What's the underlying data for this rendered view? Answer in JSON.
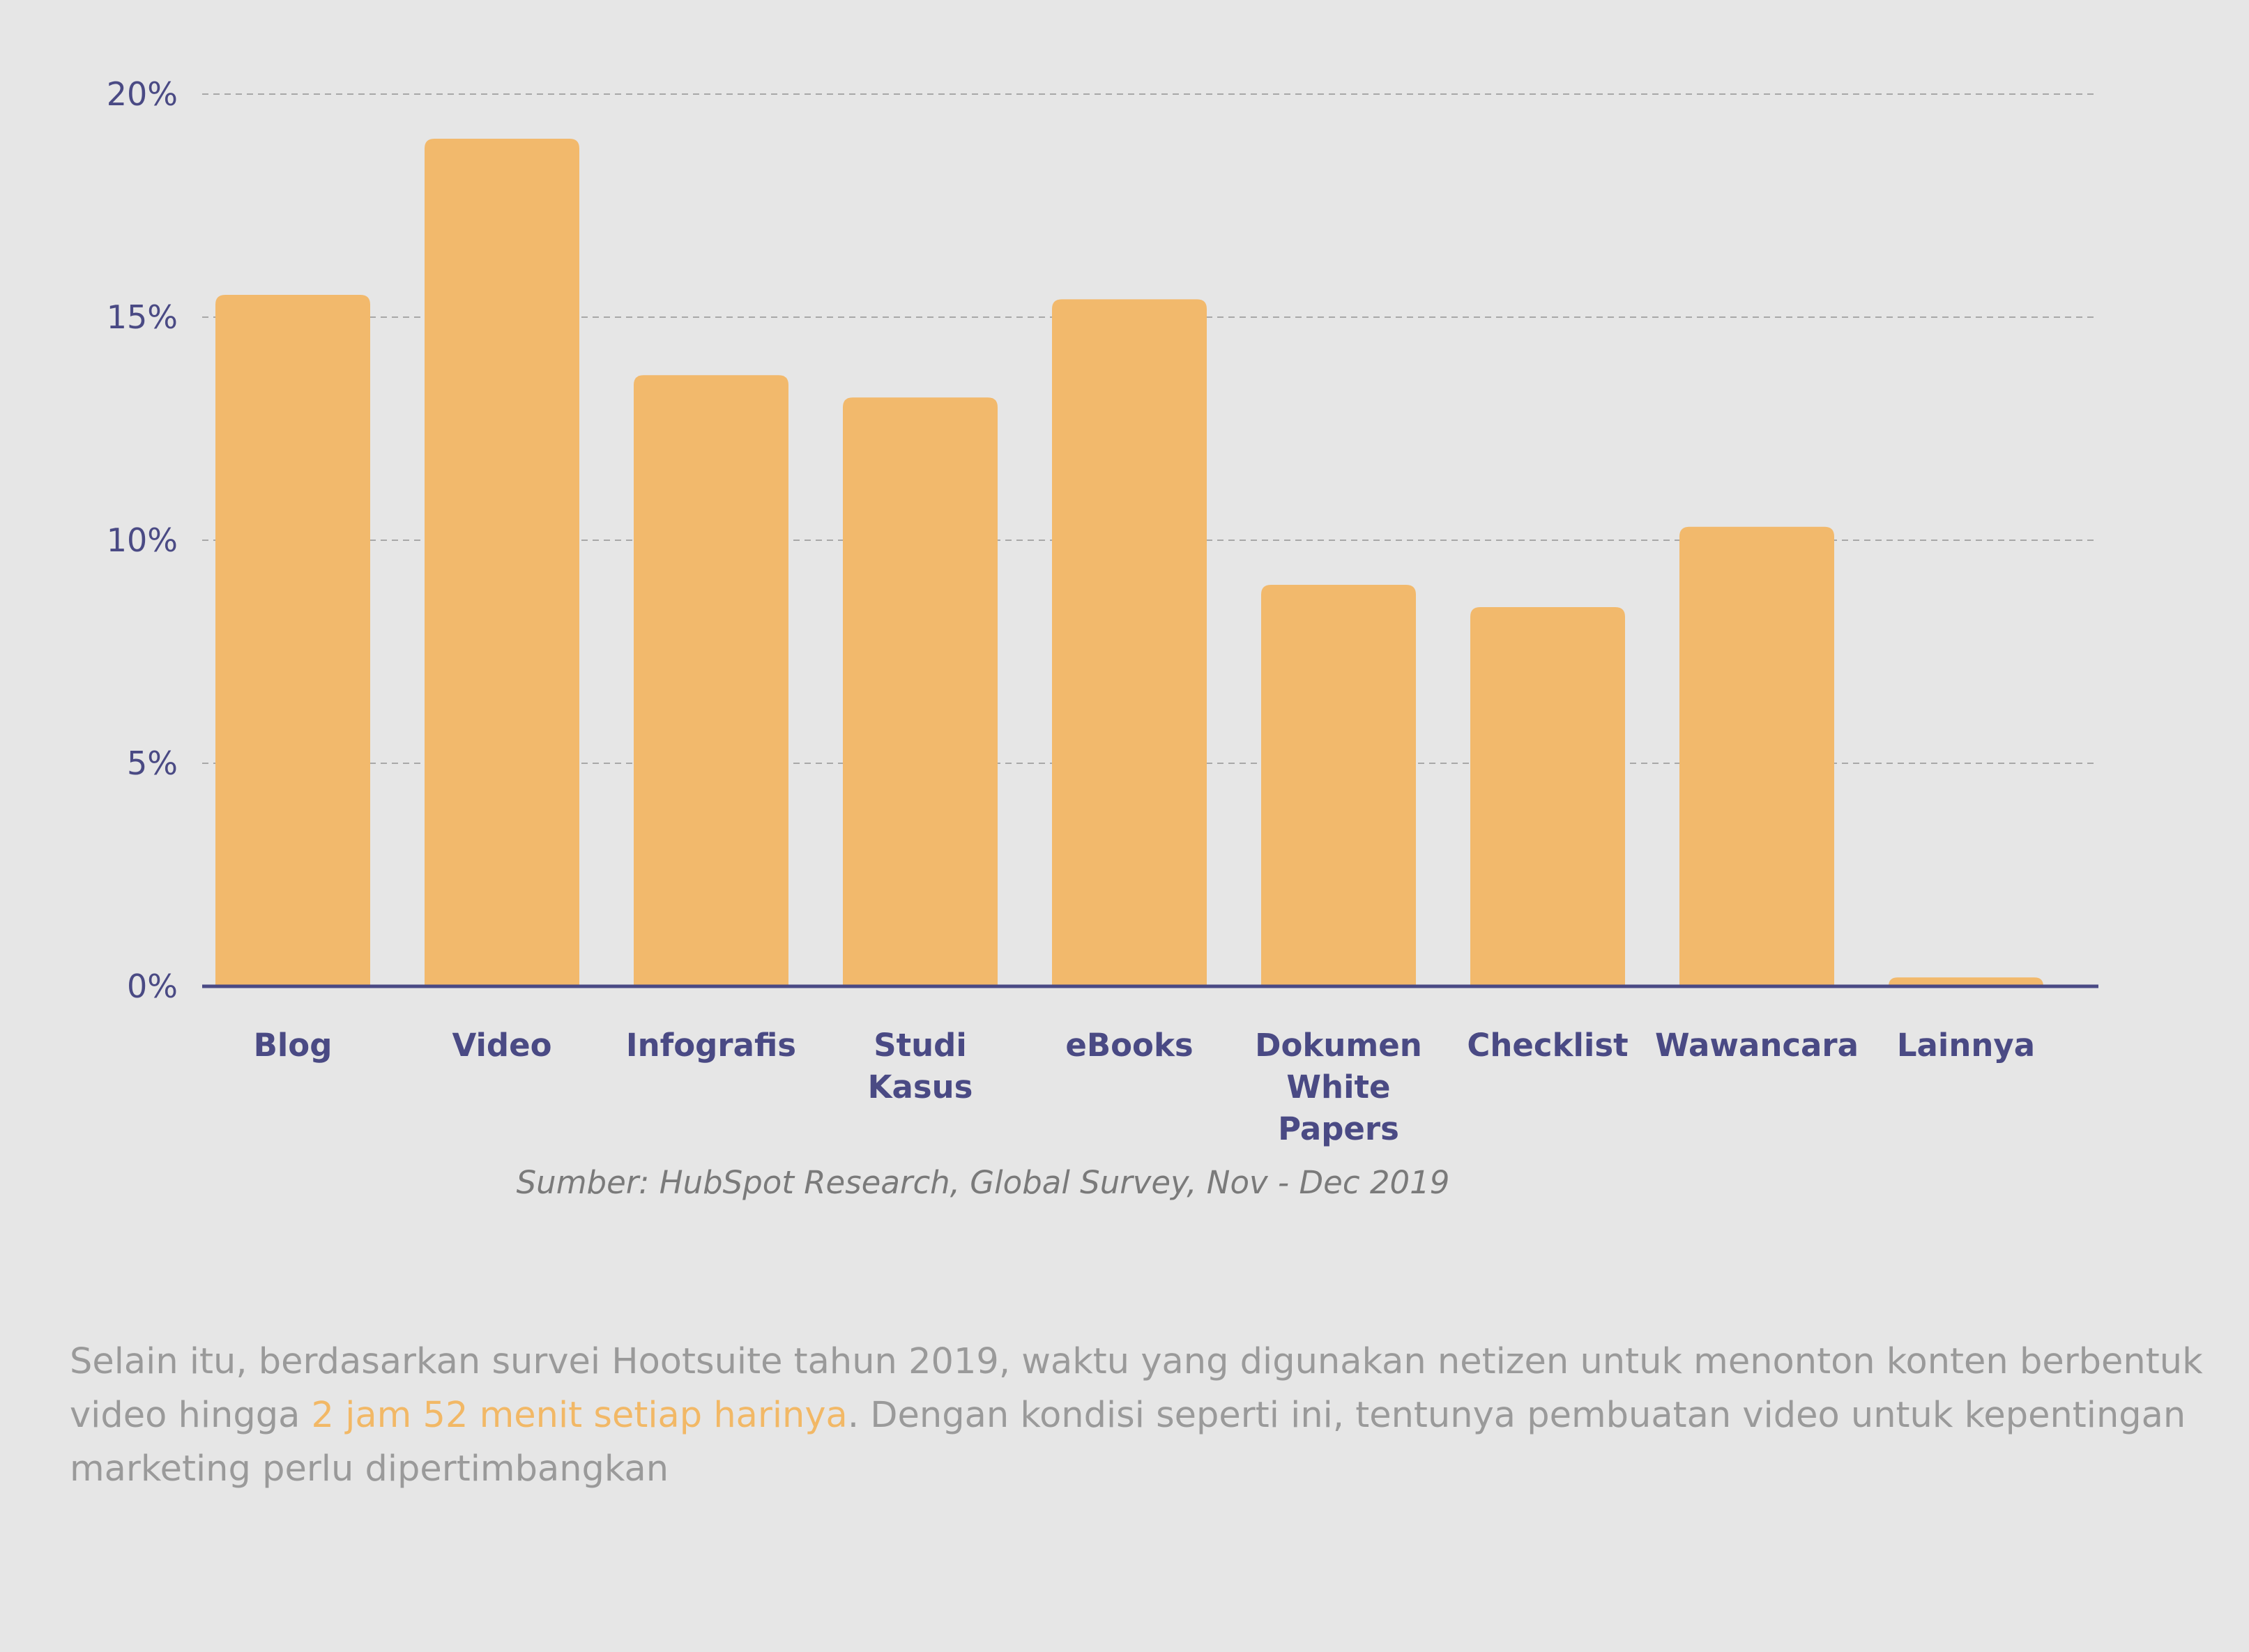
{
  "chart_data": {
    "type": "bar",
    "categories": [
      [
        "Blog"
      ],
      [
        "Video"
      ],
      [
        "Infografis"
      ],
      [
        "Studi",
        "Kasus"
      ],
      [
        "eBooks"
      ],
      [
        "Dokumen",
        "White",
        "Papers"
      ],
      [
        "Checklist"
      ],
      [
        "Wawancara"
      ],
      [
        "Lainnya"
      ]
    ],
    "values": [
      15.5,
      19.0,
      13.7,
      13.2,
      15.4,
      9.0,
      8.5,
      10.3,
      0.2
    ],
    "yticks": [
      0,
      5,
      10,
      15,
      20
    ],
    "ytick_labels": [
      "0%",
      "5%",
      "10%",
      "15%",
      "20%"
    ],
    "ylim": [
      0,
      20
    ],
    "grid": true,
    "title": "",
    "xlabel": "",
    "ylabel": "",
    "colors": {
      "bar": "#f2b96c",
      "axis": "#4a4a84",
      "grid": "#a8a8a8",
      "labels": "#4a4a84"
    }
  },
  "source": "Sumber: HubSpot Research, Global Survey, Nov - Dec 2019",
  "paragraph": {
    "before": "Selain itu, berdasarkan survei Hootsuite tahun 2019, waktu yang digunakan netizen untuk menonton konten berbentuk video hingga ",
    "highlight": "2 jam 52 menit setiap harinya",
    "after": ". Dengan kondisi seperti ini, tentunya pembuatan video untuk kepentingan marketing perlu dipertimbangkan",
    "highlight_color": "#f2b866"
  }
}
